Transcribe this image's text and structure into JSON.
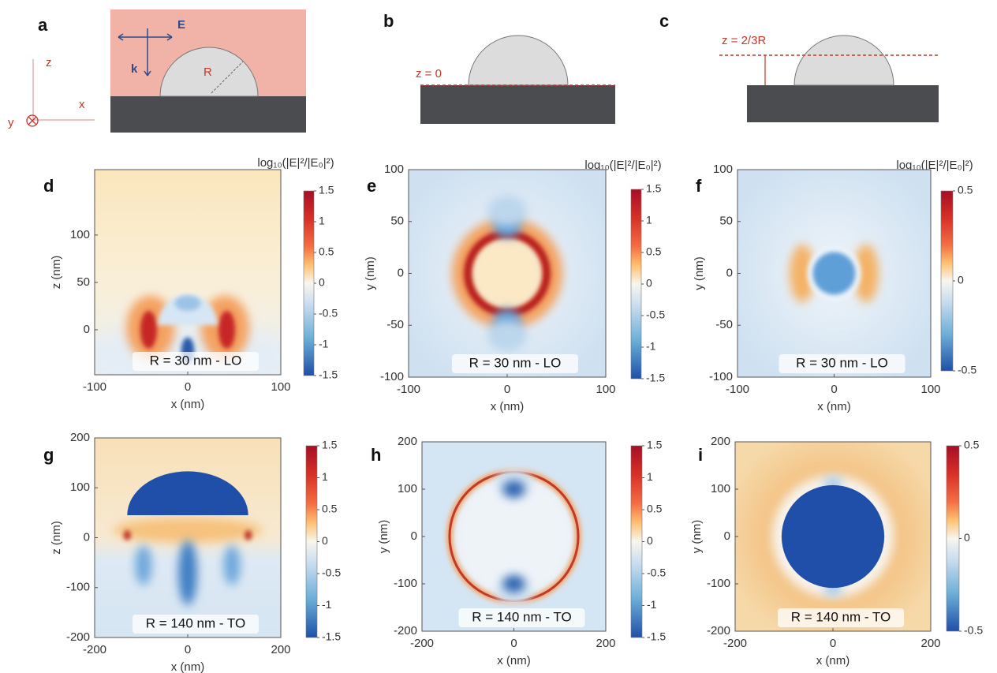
{
  "panel_a": {
    "label": "a",
    "axis_z": "z",
    "axis_x": "x",
    "axis_y": "y",
    "field": "E",
    "wavevector": "k",
    "radius": "R"
  },
  "panel_b": {
    "label": "b",
    "plane": "z = 0"
  },
  "panel_c": {
    "label": "c",
    "plane": "z = 2/3R"
  },
  "colorbar_titles": [
    "log₁₀(|E|²/|E₀|²)",
    "log₁₀(|E|²/|E₀|²)",
    "log₁₀(|E|²/|E₀|²)"
  ],
  "maps": [
    {
      "label": "d",
      "xlabel": "x (nm)",
      "ylabel": "z (nm)",
      "xlim": [
        -100,
        100
      ],
      "ylim": [
        -47.5,
        169
      ],
      "xticks": [
        -100,
        0,
        100
      ],
      "yticks": [
        0,
        50,
        100
      ],
      "cbar_lim": [
        -1.5,
        1.5
      ],
      "cbar_ticks": [
        -1.5,
        -1,
        -0.5,
        0,
        0.5,
        1,
        1.5
      ],
      "caption": "R = 30 nm - LO"
    },
    {
      "label": "e",
      "xlabel": "x (nm)",
      "ylabel": "y (nm)",
      "xlim": [
        -100,
        100
      ],
      "ylim": [
        -100,
        100
      ],
      "xticks": [
        -100,
        0,
        100
      ],
      "yticks": [
        -100,
        -50,
        0,
        50,
        100
      ],
      "cbar_lim": [
        -1.5,
        1.5
      ],
      "cbar_ticks": [
        -1.5,
        -1,
        -0.5,
        0,
        0.5,
        1,
        1.5
      ],
      "caption": "R = 30 nm - LO"
    },
    {
      "label": "f",
      "xlabel": "x (nm)",
      "ylabel": "y (nm)",
      "xlim": [
        -100,
        100
      ],
      "ylim": [
        -100,
        100
      ],
      "xticks": [
        -100,
        0,
        100
      ],
      "yticks": [
        -100,
        -50,
        0,
        50,
        100
      ],
      "cbar_lim": [
        -0.5,
        0.5
      ],
      "cbar_ticks": [
        -0.5,
        0,
        0.5
      ],
      "caption": "R = 30 nm - LO"
    },
    {
      "label": "g",
      "xlabel": "x (nm)",
      "ylabel": "z (nm)",
      "xlim": [
        -200,
        200
      ],
      "ylim": [
        -200,
        200
      ],
      "xticks": [
        -200,
        0,
        200
      ],
      "yticks": [
        -200,
        -100,
        0,
        100,
        200
      ],
      "cbar_lim": [
        -1.5,
        1.5
      ],
      "cbar_ticks": [
        -1.5,
        -1,
        -0.5,
        0,
        0.5,
        1,
        1.5
      ],
      "caption": "R = 140 nm - TO"
    },
    {
      "label": "h",
      "xlabel": "x (nm)",
      "ylabel": "y (nm)",
      "xlim": [
        -200,
        200
      ],
      "ylim": [
        -200,
        200
      ],
      "xticks": [
        -200,
        0,
        200
      ],
      "yticks": [
        -200,
        -100,
        0,
        100,
        200
      ],
      "cbar_lim": [
        -1.5,
        1.5
      ],
      "cbar_ticks": [
        -1.5,
        -1,
        -0.5,
        0,
        0.5,
        1,
        1.5
      ],
      "caption": "R = 140 nm - TO"
    },
    {
      "label": "i",
      "xlabel": "x (nm)",
      "ylabel": "y (nm)",
      "xlim": [
        -200,
        200
      ],
      "ylim": [
        -200,
        200
      ],
      "xticks": [
        -200,
        0,
        200
      ],
      "yticks": [
        -200,
        -100,
        0,
        100,
        200
      ],
      "cbar_lim": [
        -0.5,
        0.5
      ],
      "cbar_ticks": [
        -0.5,
        0,
        0.5
      ],
      "caption": "R = 140 nm - TO"
    }
  ]
}
